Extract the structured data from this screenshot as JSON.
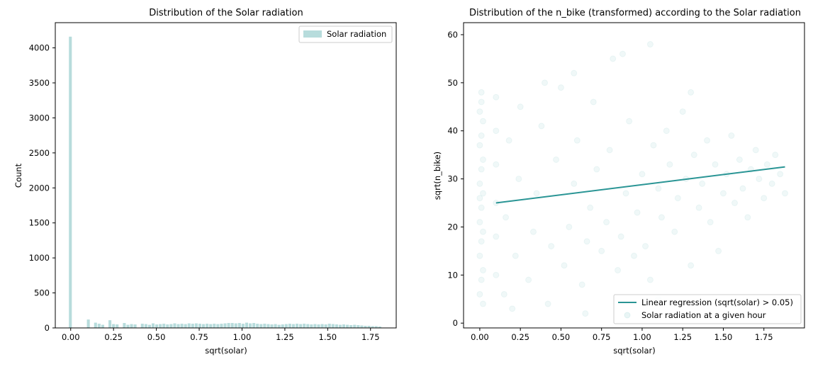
{
  "colors": {
    "hist_fill": "#b7dcdc",
    "scatter_point": "#2a9a9a",
    "regression_line": "#2a9595",
    "axes": "#000000"
  },
  "chart_data": [
    {
      "type": "bar",
      "title": "Distribution of the Solar radiation",
      "xlabel": "sqrt(solar)",
      "ylabel": "Count",
      "xlim": [
        -0.09,
        1.9
      ],
      "ylim": [
        0,
        4360
      ],
      "xticks": [
        "0.00",
        "0.25",
        "0.50",
        "0.75",
        "1.00",
        "1.25",
        "1.50",
        "1.75"
      ],
      "yticks": [
        "0",
        "500",
        "1000",
        "1500",
        "2000",
        "2500",
        "3000",
        "3500",
        "4000"
      ],
      "legend": {
        "position": "top-right",
        "entries": [
          "Solar radiation"
        ]
      },
      "bin_width": 0.021,
      "bins": [
        {
          "x": 0.0,
          "count": 4160
        },
        {
          "x": 0.105,
          "count": 120
        },
        {
          "x": 0.147,
          "count": 75
        },
        {
          "x": 0.168,
          "count": 60
        },
        {
          "x": 0.189,
          "count": 45
        },
        {
          "x": 0.231,
          "count": 110
        },
        {
          "x": 0.252,
          "count": 55
        },
        {
          "x": 0.273,
          "count": 50
        },
        {
          "x": 0.315,
          "count": 70
        },
        {
          "x": 0.336,
          "count": 45
        },
        {
          "x": 0.357,
          "count": 55
        },
        {
          "x": 0.378,
          "count": 50
        },
        {
          "x": 0.42,
          "count": 60
        },
        {
          "x": 0.441,
          "count": 55
        },
        {
          "x": 0.462,
          "count": 45
        },
        {
          "x": 0.483,
          "count": 65
        },
        {
          "x": 0.504,
          "count": 50
        },
        {
          "x": 0.525,
          "count": 55
        },
        {
          "x": 0.546,
          "count": 60
        },
        {
          "x": 0.567,
          "count": 50
        },
        {
          "x": 0.588,
          "count": 55
        },
        {
          "x": 0.609,
          "count": 65
        },
        {
          "x": 0.63,
          "count": 55
        },
        {
          "x": 0.651,
          "count": 60
        },
        {
          "x": 0.672,
          "count": 55
        },
        {
          "x": 0.693,
          "count": 65
        },
        {
          "x": 0.714,
          "count": 60
        },
        {
          "x": 0.735,
          "count": 65
        },
        {
          "x": 0.756,
          "count": 60
        },
        {
          "x": 0.777,
          "count": 55
        },
        {
          "x": 0.798,
          "count": 60
        },
        {
          "x": 0.819,
          "count": 55
        },
        {
          "x": 0.84,
          "count": 60
        },
        {
          "x": 0.861,
          "count": 55
        },
        {
          "x": 0.882,
          "count": 60
        },
        {
          "x": 0.903,
          "count": 65
        },
        {
          "x": 0.924,
          "count": 70
        },
        {
          "x": 0.945,
          "count": 70
        },
        {
          "x": 0.966,
          "count": 65
        },
        {
          "x": 0.987,
          "count": 70
        },
        {
          "x": 1.008,
          "count": 60
        },
        {
          "x": 1.029,
          "count": 75
        },
        {
          "x": 1.05,
          "count": 65
        },
        {
          "x": 1.071,
          "count": 70
        },
        {
          "x": 1.092,
          "count": 60
        },
        {
          "x": 1.113,
          "count": 55
        },
        {
          "x": 1.134,
          "count": 60
        },
        {
          "x": 1.155,
          "count": 55
        },
        {
          "x": 1.176,
          "count": 50
        },
        {
          "x": 1.197,
          "count": 55
        },
        {
          "x": 1.218,
          "count": 45
        },
        {
          "x": 1.239,
          "count": 50
        },
        {
          "x": 1.26,
          "count": 55
        },
        {
          "x": 1.281,
          "count": 60
        },
        {
          "x": 1.302,
          "count": 55
        },
        {
          "x": 1.323,
          "count": 60
        },
        {
          "x": 1.344,
          "count": 55
        },
        {
          "x": 1.365,
          "count": 60
        },
        {
          "x": 1.386,
          "count": 55
        },
        {
          "x": 1.407,
          "count": 50
        },
        {
          "x": 1.428,
          "count": 55
        },
        {
          "x": 1.449,
          "count": 50
        },
        {
          "x": 1.47,
          "count": 55
        },
        {
          "x": 1.491,
          "count": 50
        },
        {
          "x": 1.512,
          "count": 60
        },
        {
          "x": 1.533,
          "count": 55
        },
        {
          "x": 1.554,
          "count": 50
        },
        {
          "x": 1.575,
          "count": 45
        },
        {
          "x": 1.596,
          "count": 50
        },
        {
          "x": 1.617,
          "count": 45
        },
        {
          "x": 1.638,
          "count": 40
        },
        {
          "x": 1.659,
          "count": 45
        },
        {
          "x": 1.68,
          "count": 40
        },
        {
          "x": 1.701,
          "count": 35
        },
        {
          "x": 1.722,
          "count": 30
        },
        {
          "x": 1.743,
          "count": 30
        },
        {
          "x": 1.764,
          "count": 25
        },
        {
          "x": 1.785,
          "count": 25
        },
        {
          "x": 1.806,
          "count": 20
        }
      ]
    },
    {
      "type": "scatter",
      "title": "Distribution of the n_bike (transformed) according to the Solar radiation",
      "xlabel": "sqrt(solar)",
      "ylabel": "sqrt(n_bike)",
      "xlim": [
        -0.1,
        2.0
      ],
      "ylim": [
        -1.0,
        62.5
      ],
      "xticks": [
        "0.00",
        "0.25",
        "0.50",
        "0.75",
        "1.00",
        "1.25",
        "1.50",
        "1.75"
      ],
      "yticks": [
        "0",
        "10",
        "20",
        "30",
        "40",
        "50",
        "60"
      ],
      "legend": {
        "position": "bottom-right",
        "entries": [
          "Linear regression (sqrt(solar) > 0.05)",
          "Solar radiation at a given hour"
        ]
      },
      "point_opacity": 0.07,
      "regression": {
        "x": [
          0.1,
          1.88
        ],
        "y": [
          25.0,
          32.5
        ]
      },
      "points": [
        [
          0.02,
          4
        ],
        [
          0.01,
          9
        ],
        [
          0.0,
          14
        ],
        [
          0.02,
          19
        ],
        [
          0.01,
          24
        ],
        [
          0.0,
          29
        ],
        [
          0.02,
          34
        ],
        [
          0.01,
          39
        ],
        [
          0.0,
          44
        ],
        [
          0.01,
          48
        ],
        [
          0.0,
          6
        ],
        [
          0.02,
          11
        ],
        [
          0.01,
          17
        ],
        [
          0.0,
          21
        ],
        [
          0.02,
          27
        ],
        [
          0.01,
          32
        ],
        [
          0.0,
          37
        ],
        [
          0.02,
          42
        ],
        [
          0.01,
          46
        ],
        [
          0.0,
          26
        ],
        [
          0.1,
          10
        ],
        [
          0.1,
          18
        ],
        [
          0.1,
          25
        ],
        [
          0.1,
          33
        ],
        [
          0.1,
          40
        ],
        [
          0.1,
          47
        ],
        [
          0.15,
          6
        ],
        [
          0.16,
          22
        ],
        [
          0.18,
          38
        ],
        [
          0.22,
          14
        ],
        [
          0.24,
          30
        ],
        [
          0.25,
          45
        ],
        [
          0.3,
          9
        ],
        [
          0.33,
          19
        ],
        [
          0.35,
          27
        ],
        [
          0.38,
          41
        ],
        [
          0.42,
          4
        ],
        [
          0.44,
          16
        ],
        [
          0.47,
          34
        ],
        [
          0.5,
          49
        ],
        [
          0.52,
          12
        ],
        [
          0.55,
          20
        ],
        [
          0.58,
          29
        ],
        [
          0.6,
          38
        ],
        [
          0.63,
          8
        ],
        [
          0.66,
          17
        ],
        [
          0.68,
          24
        ],
        [
          0.7,
          46
        ],
        [
          0.72,
          32
        ],
        [
          0.75,
          15
        ],
        [
          0.78,
          21
        ],
        [
          0.8,
          36
        ],
        [
          0.82,
          55
        ],
        [
          0.85,
          11
        ],
        [
          0.87,
          18
        ],
        [
          0.9,
          27
        ],
        [
          0.92,
          42
        ],
        [
          0.95,
          14
        ],
        [
          0.97,
          23
        ],
        [
          1.0,
          31
        ],
        [
          1.02,
          16
        ],
        [
          1.05,
          9
        ],
        [
          1.07,
          37
        ],
        [
          1.1,
          28
        ],
        [
          1.12,
          22
        ],
        [
          1.15,
          40
        ],
        [
          1.17,
          33
        ],
        [
          1.2,
          19
        ],
        [
          1.22,
          26
        ],
        [
          1.25,
          44
        ],
        [
          1.27,
          30
        ],
        [
          1.3,
          12
        ],
        [
          1.32,
          35
        ],
        [
          1.35,
          24
        ],
        [
          1.37,
          29
        ],
        [
          1.4,
          38
        ],
        [
          1.42,
          21
        ],
        [
          1.45,
          33
        ],
        [
          1.47,
          15
        ],
        [
          1.5,
          27
        ],
        [
          1.52,
          31
        ],
        [
          1.55,
          39
        ],
        [
          1.57,
          25
        ],
        [
          1.6,
          34
        ],
        [
          1.62,
          28
        ],
        [
          1.65,
          22
        ],
        [
          1.67,
          32
        ],
        [
          1.7,
          36
        ],
        [
          1.72,
          30
        ],
        [
          1.75,
          26
        ],
        [
          1.77,
          33
        ],
        [
          1.8,
          29
        ],
        [
          1.82,
          35
        ],
        [
          1.85,
          31
        ],
        [
          1.88,
          27
        ],
        [
          0.58,
          52
        ],
        [
          0.88,
          56
        ],
        [
          1.05,
          58
        ],
        [
          0.4,
          50
        ],
        [
          1.3,
          48
        ],
        [
          0.2,
          3
        ],
        [
          0.65,
          2
        ],
        [
          1.1,
          5
        ]
      ]
    }
  ]
}
